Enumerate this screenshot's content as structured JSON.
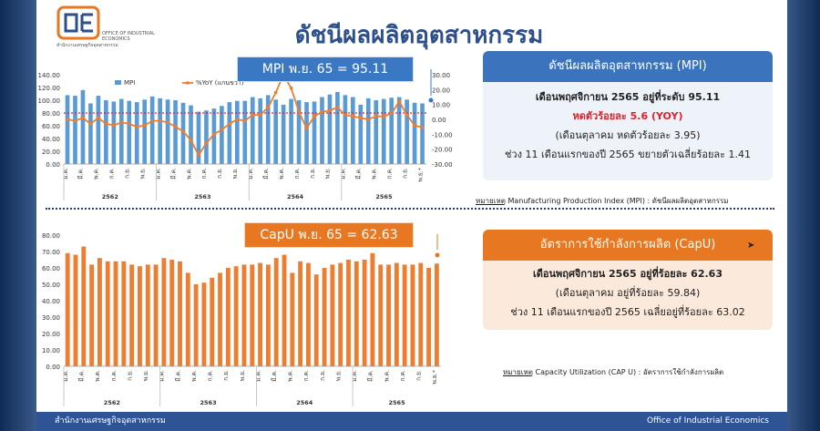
{
  "logo": {
    "letters": "OIE",
    "sub_th": "สำนักงานเศรษฐกิจอุตสาหกรรม",
    "sub_en": "OFFICE OF INDUSTRIAL ECONOMICS",
    "colors": {
      "orange": "#e87722",
      "navy": "#2d4f8c"
    }
  },
  "title": "ดัชนีผลผลิตอุตสาหกรรม",
  "mpi_callout": "MPI พ.ย. 65 = 95.11",
  "capu_callout": "CapU พ.ย. 65 = 62.63",
  "mpi_box": {
    "header": "ดัชนีผลผลิตอุตสาหกรรม (MPI)",
    "line1": "เดือนพฤศจิกายน 2565 อยู่ที่ระดับ 95.11",
    "line2": "หดตัวร้อยละ 5.6  (YOY)",
    "line3": "(เดือนตุลาคม  หดตัวร้อยละ 3.95)",
    "line4": "ช่วง 11 เดือนแรกของปี 2565 ขยายตัวเฉลี่ยร้อยละ 1.41"
  },
  "mpi_note": {
    "label": "หมายเหตุ",
    "text": " Manufacturing Production Index (MPI) : ดัชนีผลผลิตอุตสาหกรรม"
  },
  "capu_box": {
    "header": "อัตราการใช้กำลังการผลิต (CapU)",
    "line1": "เดือนพฤศจิกายน 2565 อยู่ที่ร้อยละ 62.63",
    "line2": "(เดือนตุลาคม  อยู่ที่ร้อยละ 59.84)",
    "line3": "ช่วง 11 เดือนแรกของปี 2565 เฉลี่ยอยู่ที่ร้อยละ 63.02"
  },
  "capu_note": {
    "label": "หมายเหตุ",
    "text": " Capacity Utilization (CAP U) : อัตราการใช้กำลังการผลิต"
  },
  "footer": {
    "left": "สำนักงานเศรษฐกิจอุตสาหกรรม",
    "right": "Office of Industrial Economics"
  },
  "chart_data": [
    {
      "type": "bar",
      "series": [
        {
          "name": "MPI",
          "color": "#5b9bd5",
          "axis": "left",
          "values": [
            108,
            107,
            116,
            95,
            107,
            100,
            98,
            102,
            99,
            97,
            101,
            106,
            103,
            101,
            100,
            96,
            92,
            82,
            84,
            87,
            91,
            97,
            99,
            99,
            105,
            103,
            108,
            101,
            93,
            102,
            100,
            97,
            98,
            105,
            109,
            113,
            108,
            105,
            93,
            103,
            100,
            102,
            104,
            105,
            101,
            96,
            95
          ]
        },
        {
          "name": "%YoY (แกนขวา)",
          "color": "#ed7d31",
          "axis": "right",
          "type": "line",
          "values": [
            0,
            -1,
            1,
            -3,
            1,
            -3,
            -4,
            -2,
            -3,
            -5,
            -4,
            -1,
            -1,
            -2,
            -5,
            -8,
            -14,
            -24,
            -16,
            -10,
            -7,
            -3,
            0,
            -1,
            3,
            3,
            8,
            18,
            30,
            21,
            5,
            -6,
            2,
            5,
            6,
            8,
            3,
            2,
            1,
            0,
            2,
            2,
            4,
            12,
            3,
            -4,
            -5.6
          ]
        }
      ],
      "left_axis": {
        "ticks": [
          "140.00",
          "120.00",
          "100.00",
          "80.00",
          "60.00",
          "40.00",
          "20.00",
          "0.00"
        ],
        "ylim": [
          0,
          140
        ]
      },
      "right_axis": {
        "ticks": [
          "30.00",
          "20.00",
          "10.00",
          "0.00",
          "-10.00",
          "-20.00",
          "-30.00"
        ],
        "ylim": [
          -30,
          30
        ]
      },
      "month_labels": [
        "ม.ค.",
        "มี.ค.",
        "พ.ค.",
        "ก.ค.",
        "ก.ย.",
        "พ.ย.",
        "ม.ค.",
        "มี.ค.",
        "พ.ค.",
        "ก.ค.",
        "ก.ย.",
        "พ.ย.",
        "ม.ค.",
        "มี.ค.",
        "พ.ค.",
        "ก.ค.",
        "ก.ย.",
        "พ.ย.",
        "ม.ค.",
        "มี.ค.",
        "พ.ค.",
        "ก.ค.",
        "ก.ย.",
        "พ.ย.*"
      ],
      "year_labels": [
        "2562",
        "2563",
        "2564",
        "2565"
      ],
      "legend": "top",
      "reference_line": {
        "value": 80,
        "color": "#e0202a",
        "style": "dotted"
      }
    },
    {
      "type": "bar",
      "series": [
        {
          "name": "CapU",
          "color": "#ed7d31",
          "values": [
            69,
            68,
            73,
            62,
            66,
            64,
            64,
            64,
            62,
            61,
            62,
            62,
            66,
            65,
            64,
            57,
            50,
            51,
            54,
            57,
            60,
            61,
            62,
            62,
            63,
            62,
            66,
            68,
            57,
            64,
            63,
            56,
            60,
            62,
            63,
            65,
            64,
            65,
            69,
            62,
            62,
            63,
            62,
            62,
            63,
            60,
            62.63
          ]
        }
      ],
      "left_axis": {
        "ticks": [
          "80.00",
          "70.00",
          "60.00",
          "50.00",
          "40.00",
          "30.00",
          "20.00",
          "10.00",
          "0.00"
        ],
        "ylim": [
          0,
          80
        ]
      },
      "month_labels": [
        "ม.ค.",
        "มี.ค.",
        "พ.ค.",
        "ก.ค.",
        "ก.ย.",
        "พ.ย.",
        "ม.ค.",
        "มี.ค.",
        "พ.ค.",
        "ก.ค.",
        "ก.ย.",
        "พ.ย.",
        "ม.ค.",
        "มี.ค.",
        "พ.ค.",
        "ก.ค.",
        "ก.ย.",
        "พ.ย.",
        "ม.ค.",
        "มี.ค.",
        "พ.ค.",
        "ก.ค.",
        "ก.ย.",
        "พ.ย.*"
      ],
      "year_labels": [
        "2562",
        "2563",
        "2564",
        "2565"
      ]
    }
  ]
}
